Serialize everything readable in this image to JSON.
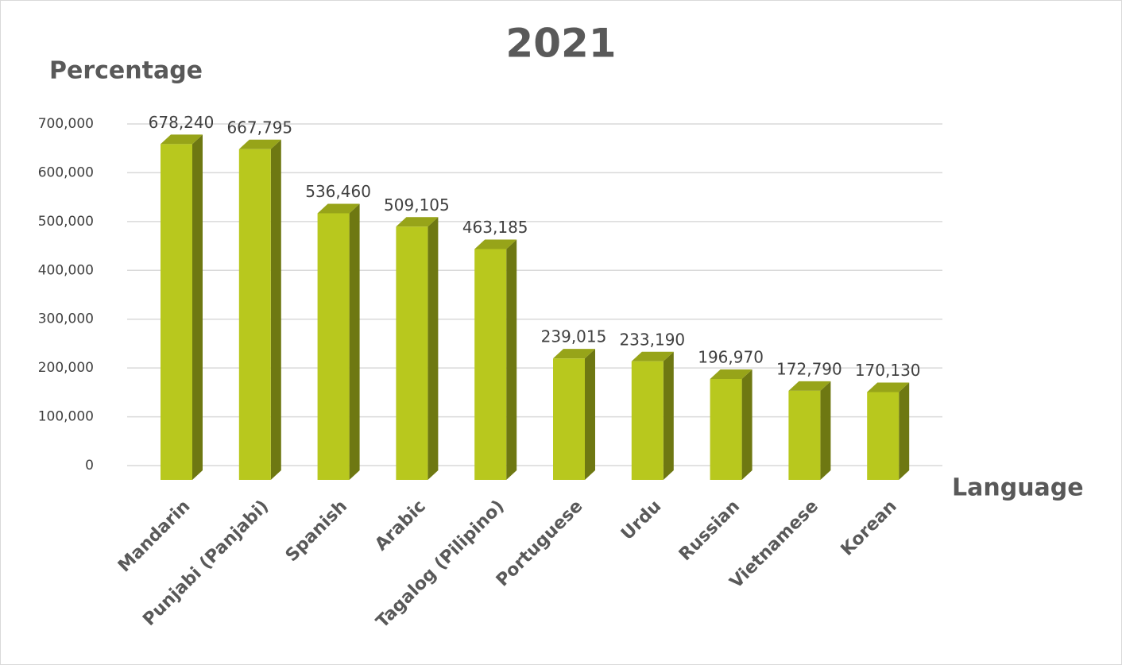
{
  "chart_data": {
    "type": "bar",
    "title": "2021",
    "y_label": "Percentage",
    "x_label": "Language",
    "categories": [
      "Mandarin",
      "Punjabi (Panjabi)",
      "Spanish",
      "Arabic",
      "Tagalog (Pilipino)",
      "Portuguese",
      "Urdu",
      "Russian",
      "Vietnamese",
      "Korean"
    ],
    "values": [
      678240,
      667795,
      536460,
      509105,
      463185,
      239015,
      233190,
      196970,
      172790,
      170130
    ],
    "value_labels": [
      "678,240",
      "667,795",
      "536,460",
      "509,105",
      "463,185",
      "239,015",
      "233,190",
      "196,970",
      "172,790",
      "170,130"
    ],
    "color": "#b8c81e",
    "ylim": [
      0,
      700000
    ],
    "yticks": [
      0,
      {
        "value": 100000,
        "label": "100,000"
      },
      {
        "value": 200000,
        "label": "200,000"
      },
      {
        "value": 300000,
        "label": "300,000"
      },
      {
        "value": 400000,
        "label": "400,000"
      },
      {
        "value": 500000,
        "label": "500,000"
      },
      {
        "value": 600000,
        "label": "600,000"
      },
      {
        "value": 700000,
        "label": "700,000"
      }
    ],
    "grid": true
  }
}
